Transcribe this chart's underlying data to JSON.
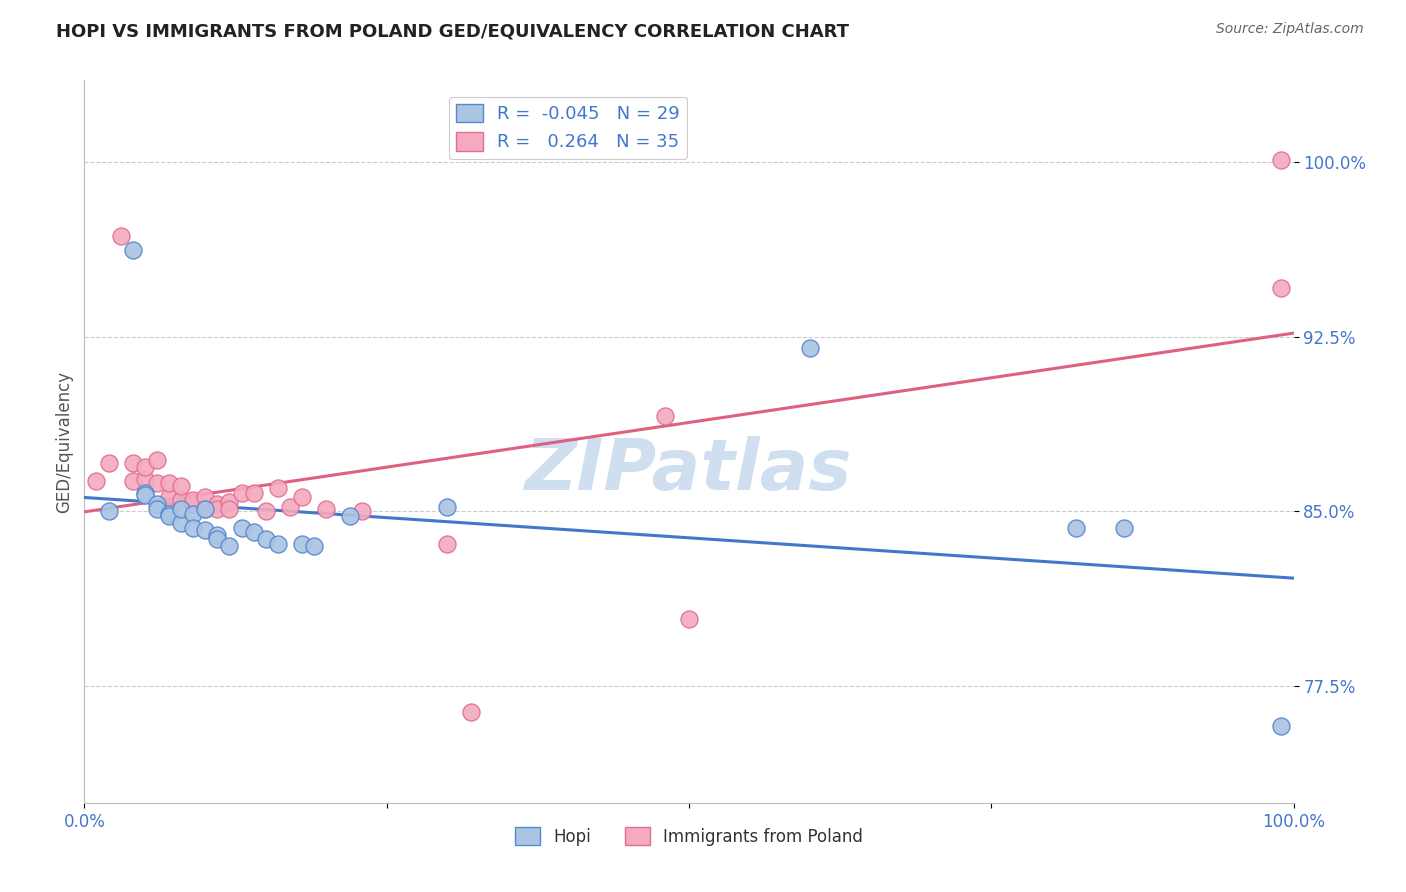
{
  "title": "HOPI VS IMMIGRANTS FROM POLAND GED/EQUIVALENCY CORRELATION CHART",
  "source": "Source: ZipAtlas.com",
  "ylabel_label": "GED/Equivalency",
  "xlim": [
    0.0,
    1.0
  ],
  "ylim": [
    0.725,
    1.035
  ],
  "ytick_labels": [
    "77.5%",
    "85.0%",
    "92.5%",
    "100.0%"
  ],
  "ytick_values": [
    0.775,
    0.85,
    0.925,
    1.0
  ],
  "hopi_R": -0.045,
  "hopi_N": 29,
  "poland_R": 0.264,
  "poland_N": 35,
  "hopi_color": "#aac4e4",
  "poland_color": "#f5aabf",
  "hopi_edge_color": "#5588cc",
  "poland_edge_color": "#e07090",
  "hopi_line_color": "#4477cc",
  "poland_line_color": "#e06080",
  "watermark": "ZIPatlas",
  "legend_R_color": "#4477cc",
  "background_color": "#ffffff",
  "grid_color": "#cccccc",
  "hopi_points_x": [
    0.02,
    0.04,
    0.05,
    0.05,
    0.06,
    0.06,
    0.07,
    0.07,
    0.08,
    0.08,
    0.09,
    0.09,
    0.1,
    0.1,
    0.11,
    0.11,
    0.12,
    0.13,
    0.14,
    0.15,
    0.16,
    0.18,
    0.19,
    0.22,
    0.3,
    0.6,
    0.82,
    0.86,
    0.99
  ],
  "hopi_points_y": [
    0.85,
    0.962,
    0.858,
    0.857,
    0.853,
    0.851,
    0.849,
    0.848,
    0.845,
    0.851,
    0.849,
    0.843,
    0.842,
    0.851,
    0.84,
    0.838,
    0.835,
    0.843,
    0.841,
    0.838,
    0.836,
    0.836,
    0.835,
    0.848,
    0.852,
    0.92,
    0.843,
    0.843,
    0.758
  ],
  "poland_points_x": [
    0.01,
    0.02,
    0.03,
    0.04,
    0.04,
    0.05,
    0.05,
    0.06,
    0.06,
    0.07,
    0.07,
    0.08,
    0.08,
    0.09,
    0.09,
    0.1,
    0.1,
    0.11,
    0.11,
    0.12,
    0.12,
    0.13,
    0.14,
    0.15,
    0.16,
    0.17,
    0.18,
    0.2,
    0.23,
    0.3,
    0.32,
    0.48,
    0.5,
    0.99,
    0.99
  ],
  "poland_points_y": [
    0.863,
    0.871,
    0.968,
    0.863,
    0.871,
    0.864,
    0.869,
    0.862,
    0.872,
    0.856,
    0.862,
    0.855,
    0.861,
    0.853,
    0.855,
    0.851,
    0.856,
    0.853,
    0.851,
    0.854,
    0.851,
    0.858,
    0.858,
    0.85,
    0.86,
    0.852,
    0.856,
    0.851,
    0.85,
    0.836,
    0.764,
    0.891,
    0.804,
    0.946,
    1.001
  ]
}
